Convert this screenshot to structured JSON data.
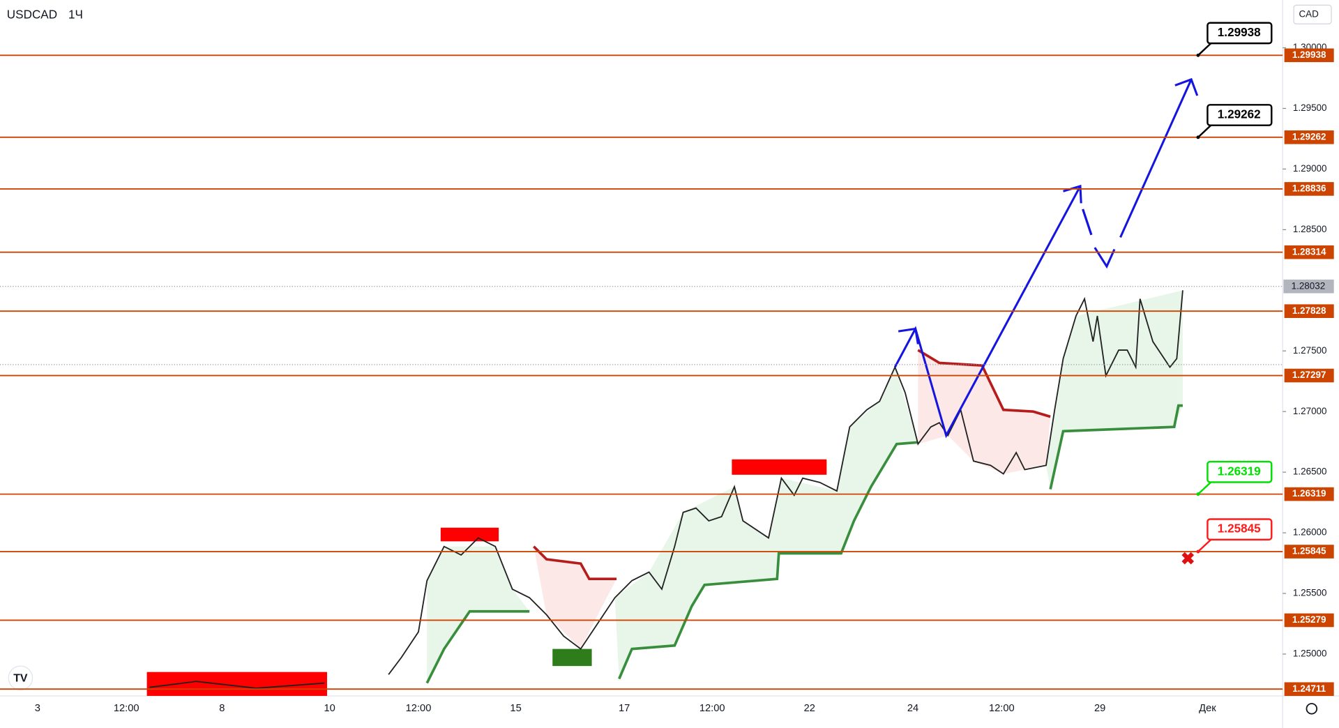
{
  "chart_data": {
    "type": "levels",
    "symbol": "USDCAD",
    "interval": "1Ч",
    "currency": "CAD",
    "ylim": [
      1.24655,
      1.30394
    ],
    "yticks": [
      {
        "value": 1.3,
        "label": "1.30000"
      },
      {
        "value": 1.295,
        "label": "1.29500"
      },
      {
        "value": 1.29,
        "label": "1.29000"
      },
      {
        "value": 1.285,
        "label": "1.28500"
      },
      {
        "value": 1.275,
        "label": "1.27500"
      },
      {
        "value": 1.27,
        "label": "1.27000"
      },
      {
        "value": 1.265,
        "label": "1.26500"
      },
      {
        "value": 1.26,
        "label": "1.26000"
      },
      {
        "value": 1.255,
        "label": "1.25500"
      },
      {
        "value": 1.25,
        "label": "1.25000"
      }
    ],
    "levels": [
      1.29938,
      1.29262,
      1.28836,
      1.28314,
      1.27828,
      1.27297,
      1.26319,
      1.25845,
      1.25279,
      1.24711
    ],
    "level_color": "#cc4400",
    "last_price": 1.28032,
    "callouts": [
      {
        "value": 1.29938,
        "color": "#000000"
      },
      {
        "value": 1.29262,
        "color": "#000000"
      },
      {
        "value": 1.26319,
        "color": "#00e000"
      },
      {
        "value": 1.25845,
        "color": "#ff1a1a"
      }
    ],
    "x_labels": [
      "3",
      "12:00",
      "8",
      "10",
      "12:00",
      "15",
      "17",
      "12:00",
      "22",
      "24",
      "12:00",
      "29",
      "Дек"
    ]
  }
}
